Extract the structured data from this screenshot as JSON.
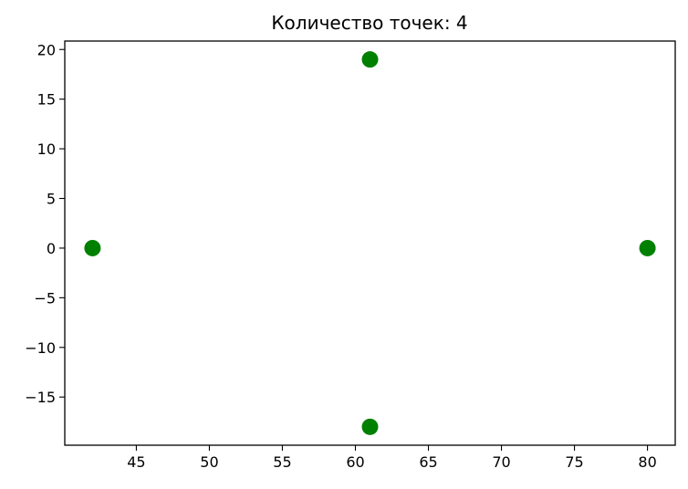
{
  "chart_data": {
    "type": "scatter",
    "title": "Количество точек: 4",
    "xlabel": "",
    "ylabel": "",
    "xlim": [
      40.1,
      81.9
    ],
    "ylim": [
      -19.85,
      20.85
    ],
    "xticks": [
      45,
      50,
      55,
      60,
      65,
      70,
      75,
      80
    ],
    "yticks": [
      -15,
      -10,
      -5,
      0,
      5,
      10,
      15,
      20
    ],
    "grid": false,
    "series": [
      {
        "color": "#008000",
        "points": [
          {
            "x": 61,
            "y": 19
          },
          {
            "x": 42,
            "y": 0
          },
          {
            "x": 80,
            "y": 0
          },
          {
            "x": 61,
            "y": -18
          }
        ]
      }
    ]
  }
}
